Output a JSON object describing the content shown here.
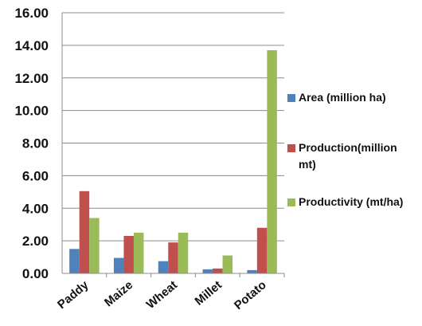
{
  "chart_data": {
    "type": "bar",
    "categories": [
      "Paddy",
      "Maize",
      "Wheat",
      "Millet",
      "Potato"
    ],
    "series": [
      {
        "name": "Area (million ha)",
        "color": "#4F81BD",
        "values": [
          1.5,
          0.95,
          0.75,
          0.25,
          0.2
        ]
      },
      {
        "name": "Production(million mt)",
        "color": "#C0504D",
        "values": [
          5.05,
          2.3,
          1.9,
          0.3,
          2.8
        ]
      },
      {
        "name": "Productivity (mt/ha)",
        "color": "#9BBB59",
        "values": [
          3.4,
          2.5,
          2.5,
          1.1,
          13.7
        ]
      }
    ],
    "ylim": [
      0,
      16
    ],
    "yticks": [
      "0.00",
      "2.00",
      "4.00",
      "6.00",
      "8.00",
      "10.00",
      "12.00",
      "14.00",
      "16.00"
    ],
    "grid": true,
    "legend_position": "right",
    "title": "",
    "xlabel": "",
    "ylabel": ""
  }
}
